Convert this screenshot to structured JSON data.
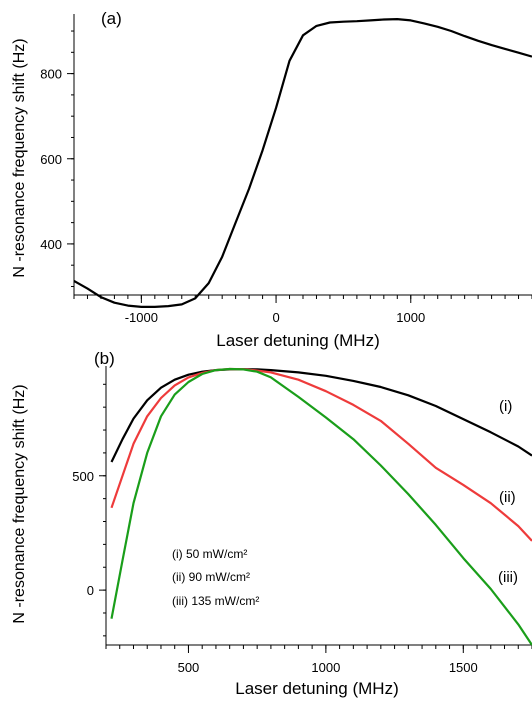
{
  "chart_data": [
    {
      "type": "line",
      "panel_label": "(a)",
      "xlabel": "Laser detuning (MHz)",
      "ylabel": "N -resonance frequency shift (Hz)",
      "xlim": [
        -1500,
        1900
      ],
      "ylim": [
        280,
        940
      ],
      "xticks": [
        -1000,
        0,
        1000
      ],
      "yticks": [
        400,
        600,
        800
      ],
      "grid": false,
      "series": [
        {
          "color": "#000000",
          "x": [
            -1500,
            -1400,
            -1300,
            -1200,
            -1100,
            -1000,
            -900,
            -800,
            -700,
            -600,
            -500,
            -400,
            -300,
            -200,
            -100,
            0,
            100,
            200,
            300,
            400,
            500,
            600,
            700,
            800,
            900,
            1000,
            1100,
            1200,
            1300,
            1400,
            1500,
            1600,
            1700,
            1800,
            1900
          ],
          "y": [
            313,
            295,
            275,
            262,
            255,
            252,
            252,
            254,
            258,
            272,
            308,
            370,
            450,
            530,
            620,
            720,
            830,
            890,
            912,
            920,
            922,
            923,
            925,
            927,
            928,
            925,
            918,
            910,
            900,
            888,
            877,
            867,
            858,
            849,
            840
          ]
        }
      ]
    },
    {
      "type": "line",
      "panel_label": "(b)",
      "xlabel": "Laser detuning (MHz)",
      "ylabel": "N -resonance frequency shift (Hz)",
      "xlim": [
        200,
        1750
      ],
      "ylim": [
        -240,
        980
      ],
      "xticks": [
        500,
        1000,
        1500
      ],
      "yticks": [
        0,
        500
      ],
      "grid": false,
      "legend": [
        "(i) 50 mW/cm²",
        "(ii) 90 mW/cm²",
        "(iii) 135 mW/cm²"
      ],
      "series": [
        {
          "name": "(i)",
          "color": "#000000",
          "x": [
            220,
            260,
            300,
            350,
            400,
            450,
            500,
            550,
            600,
            650,
            700,
            750,
            800,
            900,
            1000,
            1100,
            1200,
            1300,
            1400,
            1500,
            1600,
            1700,
            1750
          ],
          "y": [
            560,
            660,
            750,
            830,
            885,
            920,
            942,
            955,
            962,
            965,
            966,
            965,
            962,
            952,
            937,
            915,
            888,
            852,
            805,
            748,
            690,
            628,
            588
          ]
        },
        {
          "name": "(ii)",
          "color": "#ee3b3b",
          "x": [
            220,
            260,
            300,
            350,
            400,
            450,
            500,
            550,
            600,
            650,
            700,
            750,
            800,
            900,
            1000,
            1100,
            1200,
            1300,
            1400,
            1500,
            1600,
            1700,
            1750
          ],
          "y": [
            360,
            500,
            640,
            760,
            840,
            895,
            930,
            950,
            962,
            967,
            966,
            960,
            952,
            920,
            870,
            810,
            740,
            640,
            535,
            460,
            380,
            280,
            215
          ]
        },
        {
          "name": "(iii)",
          "color": "#1a9e1a",
          "x": [
            220,
            260,
            300,
            350,
            400,
            450,
            500,
            550,
            600,
            650,
            700,
            750,
            800,
            900,
            1000,
            1100,
            1200,
            1300,
            1400,
            1500,
            1600,
            1700,
            1750
          ],
          "y": [
            -125,
            130,
            380,
            600,
            760,
            855,
            910,
            945,
            962,
            967,
            965,
            955,
            930,
            845,
            755,
            660,
            545,
            420,
            285,
            140,
            5,
            -150,
            -240
          ]
        }
      ],
      "series_labels": [
        "(i)",
        "(ii)",
        "(iii)"
      ]
    }
  ]
}
